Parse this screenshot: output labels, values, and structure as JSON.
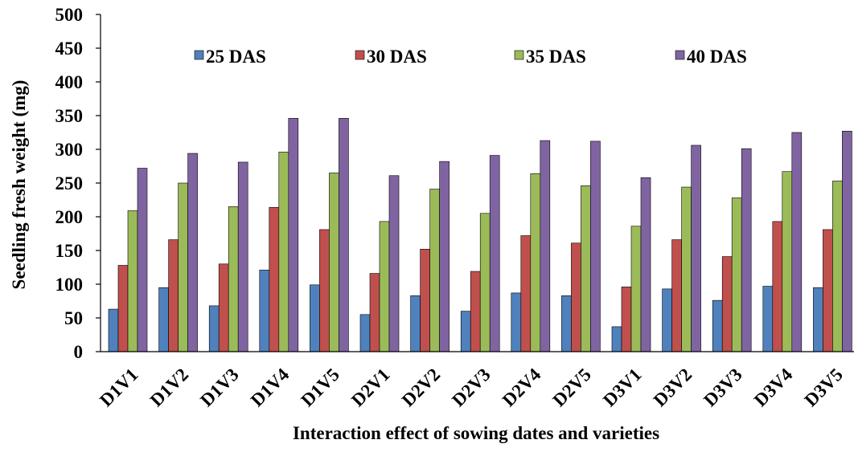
{
  "chart_data": {
    "type": "bar",
    "title": "",
    "xlabel": "Interaction effect of sowing dates and varieties",
    "ylabel": "Seedling fresh  weight (mg)",
    "ylim": [
      0,
      500
    ],
    "yticks": [
      "0",
      "50",
      "100",
      "150",
      "200",
      "250",
      "300",
      "350",
      "400",
      "450",
      "500"
    ],
    "grid": false,
    "legend_position": "top",
    "categories": [
      "D1V1",
      "D1V2",
      "D1V3",
      "D1V4",
      "D1V5",
      "D2V1",
      "D2V2",
      "D2V3",
      "D2V4",
      "D2V5",
      "D3V1",
      "D3V2",
      "D3V3",
      "D3V4",
      "D3V5"
    ],
    "series": [
      {
        "name": "25 DAS",
        "color": "#4F81BD",
        "values": [
          63,
          95,
          68,
          121,
          99,
          55,
          83,
          60,
          87,
          83,
          37,
          93,
          76,
          97,
          95
        ]
      },
      {
        "name": "30 DAS",
        "color": "#C0504D",
        "values": [
          128,
          166,
          130,
          214,
          181,
          116,
          152,
          119,
          172,
          161,
          96,
          166,
          141,
          193,
          181
        ]
      },
      {
        "name": "35 DAS",
        "color": "#9BBB59",
        "values": [
          209,
          250,
          215,
          296,
          265,
          193,
          241,
          205,
          264,
          246,
          186,
          244,
          228,
          267,
          253
        ]
      },
      {
        "name": "40 DAS",
        "color": "#8064A2",
        "values": [
          272,
          294,
          281,
          346,
          346,
          261,
          282,
          291,
          313,
          312,
          258,
          306,
          301,
          325,
          327
        ]
      }
    ]
  }
}
